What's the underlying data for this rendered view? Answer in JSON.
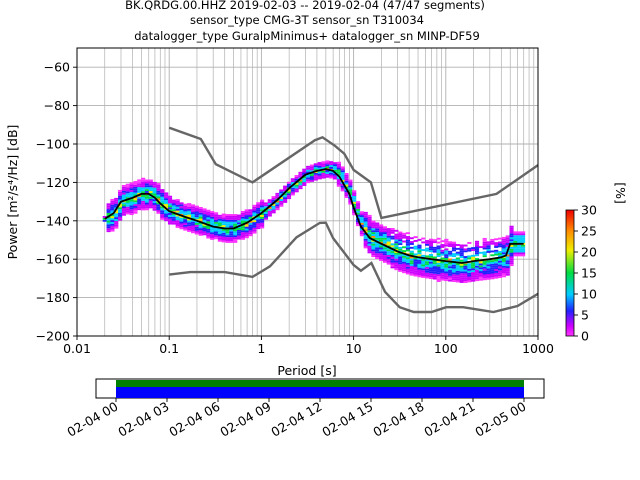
{
  "title_lines": [
    "BK.QRDG.00.HHZ   2019-02-03 -- 2019-02-04  (47/47 segments)",
    "sensor_type CMG-3T sensor_sn T310034",
    "datalogger_type GuralpMinimus+ datalogger_sn MINP-DF59"
  ],
  "chart_data": {
    "type": "heatmap",
    "x_scale": "log",
    "xlabel": "Period [s]",
    "ylabel": "Power [m²/s⁴/Hz] [dB]",
    "xlim": [
      0.01,
      1000
    ],
    "ylim": [
      -200,
      -50
    ],
    "x_ticks": [
      0.01,
      0.1,
      1,
      10,
      100,
      1000
    ],
    "x_tick_labels": [
      "0.01",
      "0.1",
      "1",
      "10",
      "100",
      "1000"
    ],
    "y_ticks": [
      -200,
      -180,
      -160,
      -140,
      -120,
      -100,
      -80,
      -60
    ],
    "y_tick_labels": [
      "−200",
      "−180",
      "−160",
      "−140",
      "−120",
      "−100",
      "−80",
      "−60"
    ],
    "grid": true,
    "colorbar": {
      "label": "[%]",
      "range": [
        0,
        30
      ],
      "ticks": [
        0,
        5,
        10,
        15,
        20,
        25,
        30
      ]
    },
    "series": [
      {
        "name": "",
        "kind": "mean",
        "color": "#000000",
        "points": [
          [
            0.02,
            -139
          ],
          [
            0.025,
            -136
          ],
          [
            0.03,
            -130
          ],
          [
            0.04,
            -128
          ],
          [
            0.05,
            -126
          ],
          [
            0.06,
            -126
          ],
          [
            0.07,
            -128
          ],
          [
            0.08,
            -131
          ],
          [
            0.1,
            -135
          ],
          [
            0.15,
            -138
          ],
          [
            0.2,
            -140
          ],
          [
            0.3,
            -143
          ],
          [
            0.4,
            -144
          ],
          [
            0.5,
            -144
          ],
          [
            0.7,
            -141
          ],
          [
            1,
            -136
          ],
          [
            1.5,
            -129
          ],
          [
            2,
            -123
          ],
          [
            3,
            -116
          ],
          [
            4,
            -114
          ],
          [
            5,
            -113
          ],
          [
            6,
            -114
          ],
          [
            7,
            -117
          ],
          [
            9,
            -126
          ],
          [
            10,
            -133
          ],
          [
            12,
            -143
          ],
          [
            15,
            -149
          ],
          [
            20,
            -152
          ],
          [
            30,
            -156
          ],
          [
            40,
            -158
          ],
          [
            50,
            -159
          ],
          [
            70,
            -160
          ],
          [
            100,
            -161
          ],
          [
            150,
            -162
          ],
          [
            200,
            -161
          ],
          [
            300,
            -160
          ],
          [
            400,
            -159
          ],
          [
            450,
            -158
          ],
          [
            500,
            -152
          ],
          [
            600,
            -152
          ],
          [
            700,
            -152
          ]
        ]
      },
      {
        "name": "",
        "kind": "noise-model-high",
        "color": "#666666",
        "points": [
          [
            0.1,
            -91.5
          ],
          [
            0.22,
            -97.4
          ],
          [
            0.32,
            -110.5
          ],
          [
            0.8,
            -120
          ],
          [
            3.8,
            -98
          ],
          [
            4.6,
            -96.5
          ],
          [
            6.3,
            -101
          ],
          [
            7.9,
            -105
          ],
          [
            10,
            -113.5
          ],
          [
            15.4,
            -120
          ],
          [
            20,
            -138.5
          ],
          [
            354.8,
            -126
          ],
          [
            1000,
            -111
          ]
        ]
      },
      {
        "name": "",
        "kind": "noise-model-low",
        "color": "#666666",
        "points": [
          [
            0.1,
            -168
          ],
          [
            0.17,
            -166.7
          ],
          [
            0.4,
            -166.7
          ],
          [
            0.8,
            -169.2
          ],
          [
            1.24,
            -163.7
          ],
          [
            2.4,
            -148.6
          ],
          [
            4.3,
            -141.1
          ],
          [
            5,
            -141
          ],
          [
            6,
            -149
          ],
          [
            10,
            -163
          ],
          [
            12,
            -166
          ],
          [
            15.6,
            -162
          ],
          [
            21.9,
            -177
          ],
          [
            31.6,
            -185
          ],
          [
            45,
            -187.5
          ],
          [
            70,
            -187.5
          ],
          [
            101,
            -185
          ],
          [
            154,
            -185
          ],
          [
            328,
            -187.5
          ],
          [
            600,
            -184.4
          ],
          [
            1000,
            -178
          ]
        ]
      }
    ]
  },
  "timeline": {
    "tick_labels": [
      "02-04 00",
      "02-04 03",
      "02-04 06",
      "02-04 09",
      "02-04 12",
      "02-04 15",
      "02-04 18",
      "02-04 21",
      "02-05 00"
    ],
    "colors": {
      "top": "#008000",
      "bottom": "#0000ff"
    }
  }
}
